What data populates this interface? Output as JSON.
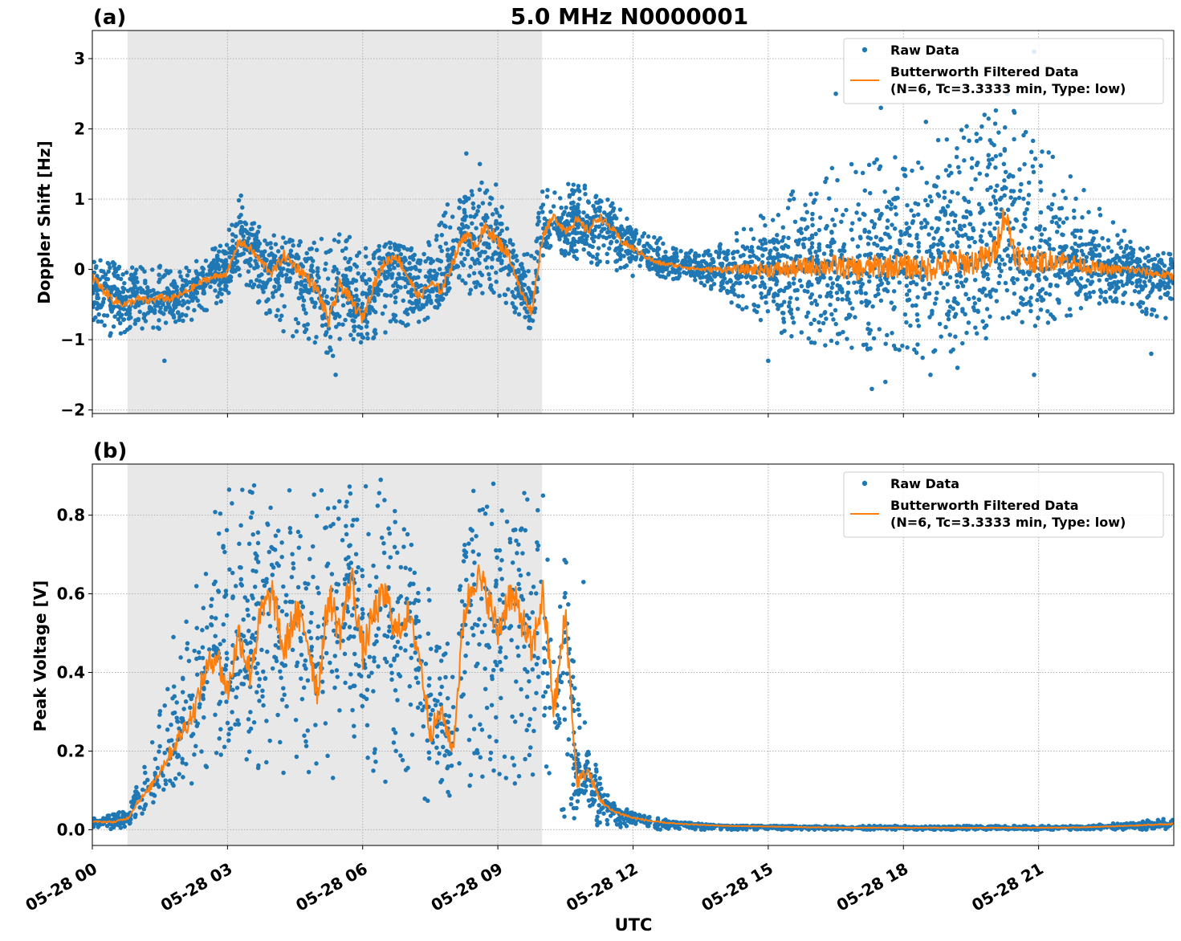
{
  "figure": {
    "title": "5.0 MHz N0000001",
    "xlabel": "UTC"
  },
  "colors": {
    "raw": "#1f77b4",
    "filtered": "#ff7f0e",
    "shade": "#e8e8e8",
    "grid": "#b0b0b0"
  },
  "chart_data": [
    {
      "type": "scatter",
      "panel_label": "(a)",
      "ylabel": "Doppler Shift [Hz]",
      "ylim": [
        -2.05,
        3.4
      ],
      "yticks": [
        -2,
        -1,
        0,
        1,
        2,
        3
      ],
      "ytick_labels": [
        "−2",
        "−1",
        "0",
        "1",
        "2",
        "3"
      ],
      "xlim_hours": [
        0,
        24
      ],
      "xticks_hours": [
        0,
        3,
        6,
        9,
        12,
        15,
        18,
        21
      ],
      "shaded_region_hours": [
        0.78,
        9.98
      ],
      "grid": true,
      "legend_position": "top-right",
      "legend": [
        {
          "label": "Raw Data",
          "marker": "dot"
        },
        {
          "label": "Butterworth Filtered Data",
          "sub": "(N=6, Tc=3.3333 min, Type: low)",
          "marker": "line"
        }
      ],
      "series": [
        {
          "name": "Raw Data",
          "kind": "scatter-band",
          "x": [
            0,
            0.5,
            1,
            1.5,
            2,
            2.5,
            3,
            3.25,
            3.5,
            4,
            4.5,
            5,
            5.25,
            5.5,
            6,
            6.5,
            7,
            7.5,
            8,
            8.5,
            9,
            9.5,
            9.75,
            10,
            10.5,
            11,
            11.5,
            12,
            12.5,
            13,
            13.5,
            14,
            14.5,
            15,
            15.5,
            16,
            16.5,
            17,
            17.5,
            18,
            18.5,
            19,
            19.5,
            20,
            20.5,
            21,
            21.5,
            22,
            22.5,
            23,
            23.5,
            24
          ],
          "lower": [
            -1.0,
            -0.95,
            -0.85,
            -0.9,
            -0.8,
            -0.6,
            -0.4,
            -0.1,
            -0.3,
            -0.8,
            -1.0,
            -1.1,
            -1.4,
            -1.0,
            -1.1,
            -0.9,
            -0.8,
            -0.7,
            -0.2,
            -0.4,
            -0.4,
            -0.7,
            -0.9,
            0.2,
            0.2,
            0.1,
            0.0,
            -0.1,
            -0.1,
            -0.15,
            -0.2,
            -0.4,
            -0.6,
            -0.9,
            -1.0,
            -1.1,
            -1.2,
            -1.3,
            -1.2,
            -1.2,
            -1.3,
            -1.2,
            -1.0,
            -1.0,
            -0.9,
            -0.8,
            -0.7,
            -0.6,
            -0.5,
            -0.5,
            -0.7,
            -0.8
          ],
          "upper": [
            0.2,
            0.1,
            0.05,
            0.05,
            0.0,
            0.2,
            0.5,
            1.0,
            0.7,
            0.5,
            0.4,
            0.4,
            0.5,
            0.6,
            0.3,
            0.4,
            0.3,
            0.4,
            1.1,
            1.3,
            1.2,
            0.2,
            0.3,
            1.4,
            1.3,
            1.2,
            1.0,
            0.7,
            0.5,
            0.3,
            0.25,
            0.4,
            0.6,
            0.9,
            1.2,
            1.3,
            1.5,
            1.5,
            1.6,
            1.6,
            1.7,
            2.0,
            2.1,
            2.3,
            2.3,
            1.9,
            1.5,
            1.2,
            0.8,
            0.5,
            0.3,
            0.2
          ],
          "outliers": [
            [
              16.5,
              2.5
            ],
            [
              17.5,
              2.3
            ],
            [
              18.5,
              2.1
            ],
            [
              19.8,
              2.2
            ],
            [
              20.3,
              2.5
            ],
            [
              20.9,
              3.1
            ],
            [
              17.3,
              -1.7
            ],
            [
              17.6,
              -1.6
            ],
            [
              18.6,
              -1.5
            ],
            [
              19.2,
              -1.4
            ],
            [
              20.9,
              -1.5
            ],
            [
              15.0,
              -1.3
            ],
            [
              1.6,
              -1.3
            ],
            [
              5.4,
              -1.5
            ],
            [
              8.3,
              1.65
            ],
            [
              8.6,
              1.5
            ],
            [
              3.3,
              1.05
            ],
            [
              23.5,
              -1.2
            ]
          ]
        },
        {
          "name": "Butterworth Filtered Data",
          "kind": "line",
          "x": [
            0,
            0.25,
            0.5,
            0.75,
            1,
            1.25,
            1.5,
            1.75,
            2,
            2.25,
            2.5,
            2.75,
            3,
            3.25,
            3.5,
            3.75,
            4,
            4.25,
            4.5,
            4.75,
            5,
            5.25,
            5.5,
            5.75,
            6,
            6.25,
            6.5,
            6.75,
            7,
            7.25,
            7.5,
            7.75,
            8,
            8.25,
            8.5,
            8.75,
            9,
            9.25,
            9.5,
            9.75,
            10,
            10.25,
            10.5,
            10.75,
            11,
            11.25,
            11.5,
            11.75,
            12,
            12.5,
            13,
            13.5,
            14,
            14.5,
            15,
            15.5,
            16,
            16.5,
            17,
            17.5,
            18,
            18.5,
            19,
            19.5,
            20,
            20.25,
            20.5,
            21,
            21.5,
            22,
            22.5,
            23,
            23.5,
            24
          ],
          "y": [
            -0.1,
            -0.3,
            -0.45,
            -0.5,
            -0.42,
            -0.45,
            -0.4,
            -0.42,
            -0.35,
            -0.25,
            -0.15,
            -0.1,
            -0.05,
            0.4,
            0.3,
            0.1,
            -0.05,
            0.2,
            0.05,
            -0.1,
            -0.3,
            -0.75,
            -0.2,
            -0.45,
            -0.7,
            -0.2,
            0.1,
            0.2,
            -0.1,
            -0.4,
            -0.2,
            -0.3,
            0.1,
            0.5,
            0.35,
            0.6,
            0.4,
            0.2,
            -0.3,
            -0.6,
            0.5,
            0.75,
            0.55,
            0.7,
            0.55,
            0.75,
            0.6,
            0.4,
            0.3,
            0.1,
            0.05,
            0.0,
            0.0,
            0.0,
            0.0,
            0.0,
            0.05,
            0.05,
            0.0,
            0.05,
            0.05,
            0.0,
            0.1,
            0.1,
            0.2,
            0.8,
            0.2,
            0.1,
            0.15,
            0.05,
            0.0,
            0.0,
            -0.05,
            -0.1
          ]
        }
      ]
    },
    {
      "type": "scatter",
      "panel_label": "(b)",
      "ylabel": "Peak Voltage [V]",
      "ylim": [
        -0.04,
        0.93
      ],
      "yticks": [
        0.0,
        0.2,
        0.4,
        0.6,
        0.8
      ],
      "ytick_labels": [
        "0.0",
        "0.2",
        "0.4",
        "0.6",
        "0.8"
      ],
      "xlim_hours": [
        0,
        24
      ],
      "xticks_hours": [
        0,
        3,
        6,
        9,
        12,
        15,
        18,
        21
      ],
      "xtick_labels": [
        "05-28 00",
        "05-28 03",
        "05-28 06",
        "05-28 09",
        "05-28 12",
        "05-28 15",
        "05-28 18",
        "05-28 21"
      ],
      "shaded_region_hours": [
        0.78,
        9.98
      ],
      "grid": true,
      "legend_position": "top-right",
      "legend": [
        {
          "label": "Raw Data",
          "marker": "dot"
        },
        {
          "label": "Butterworth Filtered Data",
          "sub": "(N=6, Tc=3.3333 min, Type: low)",
          "marker": "line"
        }
      ],
      "series": [
        {
          "name": "Raw Data",
          "kind": "scatter-band",
          "x": [
            0,
            0.5,
            0.8,
            1,
            1.25,
            1.5,
            1.75,
            2,
            2.25,
            2.5,
            2.75,
            3,
            3.25,
            3.5,
            4,
            4.5,
            5,
            5.5,
            6,
            6.5,
            7,
            7.25,
            7.5,
            7.75,
            8,
            8.25,
            8.5,
            9,
            9.5,
            10,
            10.25,
            10.5,
            10.75,
            11,
            11.25,
            11.5,
            12,
            12.5,
            13,
            14,
            15,
            16,
            17,
            18,
            19,
            20,
            21,
            22,
            23,
            24
          ],
          "lower": [
            0.0,
            0.0,
            0.01,
            0.03,
            0.05,
            0.07,
            0.09,
            0.1,
            0.12,
            0.15,
            0.18,
            0.2,
            0.2,
            0.15,
            0.15,
            0.12,
            0.1,
            0.13,
            0.15,
            0.12,
            0.15,
            0.1,
            0.05,
            0.1,
            0.08,
            0.12,
            0.1,
            0.12,
            0.1,
            0.1,
            0.05,
            0.02,
            0.02,
            0.01,
            0.01,
            0.005,
            0.0,
            0.0,
            0.0,
            0.0,
            0.0,
            0.0,
            0.0,
            0.0,
            0.0,
            0.0,
            0.0,
            0.0,
            0.0,
            0.0
          ],
          "upper": [
            0.03,
            0.04,
            0.06,
            0.12,
            0.2,
            0.3,
            0.42,
            0.5,
            0.6,
            0.7,
            0.85,
            0.87,
            0.88,
            0.88,
            0.88,
            0.88,
            0.86,
            0.88,
            0.88,
            0.88,
            0.75,
            0.7,
            0.6,
            0.45,
            0.5,
            0.8,
            0.88,
            0.88,
            0.88,
            0.85,
            0.85,
            0.7,
            0.35,
            0.25,
            0.15,
            0.07,
            0.05,
            0.03,
            0.02,
            0.01,
            0.01,
            0.01,
            0.01,
            0.01,
            0.01,
            0.01,
            0.01,
            0.01,
            0.02,
            0.03
          ],
          "outliers": [
            [
              10.9,
              0.63
            ],
            [
              6.4,
              0.89
            ],
            [
              3.5,
              0.86
            ],
            [
              8.9,
              0.88
            ],
            [
              2.1,
              0.46
            ],
            [
              1.8,
              0.49
            ]
          ]
        },
        {
          "name": "Butterworth Filtered Data",
          "kind": "line",
          "x": [
            0,
            0.5,
            0.8,
            1,
            1.25,
            1.5,
            1.75,
            2,
            2.25,
            2.5,
            2.75,
            3,
            3.25,
            3.5,
            3.75,
            4,
            4.25,
            4.5,
            4.75,
            5,
            5.25,
            5.5,
            5.75,
            6,
            6.25,
            6.5,
            6.75,
            7,
            7.25,
            7.5,
            7.75,
            8,
            8.25,
            8.5,
            8.75,
            9,
            9.25,
            9.5,
            9.75,
            10,
            10.25,
            10.5,
            10.75,
            11,
            11.25,
            11.5,
            12,
            12.5,
            13,
            14,
            15,
            16,
            17,
            18,
            19,
            20,
            21,
            22,
            23,
            24
          ],
          "y": [
            0.02,
            0.02,
            0.03,
            0.07,
            0.1,
            0.15,
            0.2,
            0.25,
            0.3,
            0.4,
            0.45,
            0.35,
            0.5,
            0.4,
            0.55,
            0.6,
            0.45,
            0.55,
            0.5,
            0.35,
            0.6,
            0.5,
            0.65,
            0.45,
            0.55,
            0.6,
            0.5,
            0.55,
            0.45,
            0.25,
            0.3,
            0.2,
            0.55,
            0.65,
            0.6,
            0.5,
            0.6,
            0.55,
            0.45,
            0.6,
            0.3,
            0.55,
            0.12,
            0.15,
            0.08,
            0.05,
            0.03,
            0.02,
            0.015,
            0.01,
            0.008,
            0.006,
            0.005,
            0.005,
            0.005,
            0.005,
            0.005,
            0.006,
            0.01,
            0.015
          ]
        }
      ]
    }
  ]
}
